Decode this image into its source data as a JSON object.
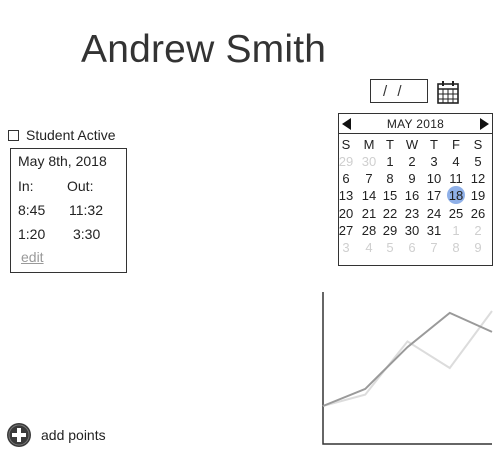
{
  "profile": {
    "name": "Andrew Smith"
  },
  "date_picker": {
    "value": "/ /",
    "icon": "calendar-icon"
  },
  "student_active": {
    "label": "Student Active",
    "checked": false
  },
  "attendance": {
    "date": "May 8th, 2018",
    "in_label": "In:",
    "out_label": "Out:",
    "sessions": [
      {
        "in": "8:45",
        "out": "11:32"
      },
      {
        "in": "1:20",
        "out": "3:30"
      }
    ],
    "edit_label": "edit"
  },
  "calendar": {
    "month_label": "MAY 2018",
    "weekdays": [
      "S",
      "M",
      "T",
      "W",
      "T",
      "F",
      "S"
    ],
    "selected_day": "18",
    "weeks": [
      [
        {
          "d": "29",
          "m": true
        },
        {
          "d": "30",
          "m": true
        },
        {
          "d": "1"
        },
        {
          "d": "2"
        },
        {
          "d": "3"
        },
        {
          "d": "4"
        },
        {
          "d": "5"
        }
      ],
      [
        {
          "d": "6"
        },
        {
          "d": "7"
        },
        {
          "d": "8"
        },
        {
          "d": "9"
        },
        {
          "d": "10"
        },
        {
          "d": "11"
        },
        {
          "d": "12"
        }
      ],
      [
        {
          "d": "13"
        },
        {
          "d": "14"
        },
        {
          "d": "15"
        },
        {
          "d": "16"
        },
        {
          "d": "17"
        },
        {
          "d": "18"
        },
        {
          "d": "19"
        }
      ],
      [
        {
          "d": "20"
        },
        {
          "d": "21"
        },
        {
          "d": "22"
        },
        {
          "d": "23"
        },
        {
          "d": "24"
        },
        {
          "d": "25"
        },
        {
          "d": "26"
        }
      ],
      [
        {
          "d": "27"
        },
        {
          "d": "28"
        },
        {
          "d": "29"
        },
        {
          "d": "30"
        },
        {
          "d": "31"
        },
        {
          "d": "1",
          "m": true
        },
        {
          "d": "2",
          "m": true
        }
      ],
      [
        {
          "d": "3",
          "m": true
        },
        {
          "d": "4",
          "m": true
        },
        {
          "d": "5",
          "m": true
        },
        {
          "d": "6",
          "m": true
        },
        {
          "d": "7",
          "m": true
        },
        {
          "d": "8",
          "m": true
        },
        {
          "d": "9",
          "m": true
        }
      ]
    ],
    "selected_color": "#8fb0e8"
  },
  "chart_data": {
    "type": "line",
    "title": "",
    "xlabel": "",
    "ylabel": "",
    "xlim": [
      0,
      4
    ],
    "ylim": [
      0,
      4
    ],
    "series": [
      {
        "x": [
          0,
          1,
          2,
          3,
          4
        ],
        "values": [
          1.0,
          1.3,
          2.7,
          2.0,
          3.5
        ],
        "color": "#dcdcdc"
      },
      {
        "x": [
          0,
          1,
          2,
          3,
          4
        ],
        "values": [
          1.0,
          1.45,
          2.55,
          3.45,
          2.95
        ],
        "color": "#9a9a9a"
      }
    ]
  },
  "add_points": {
    "label": "add points",
    "icon": "plus-circle-icon"
  }
}
